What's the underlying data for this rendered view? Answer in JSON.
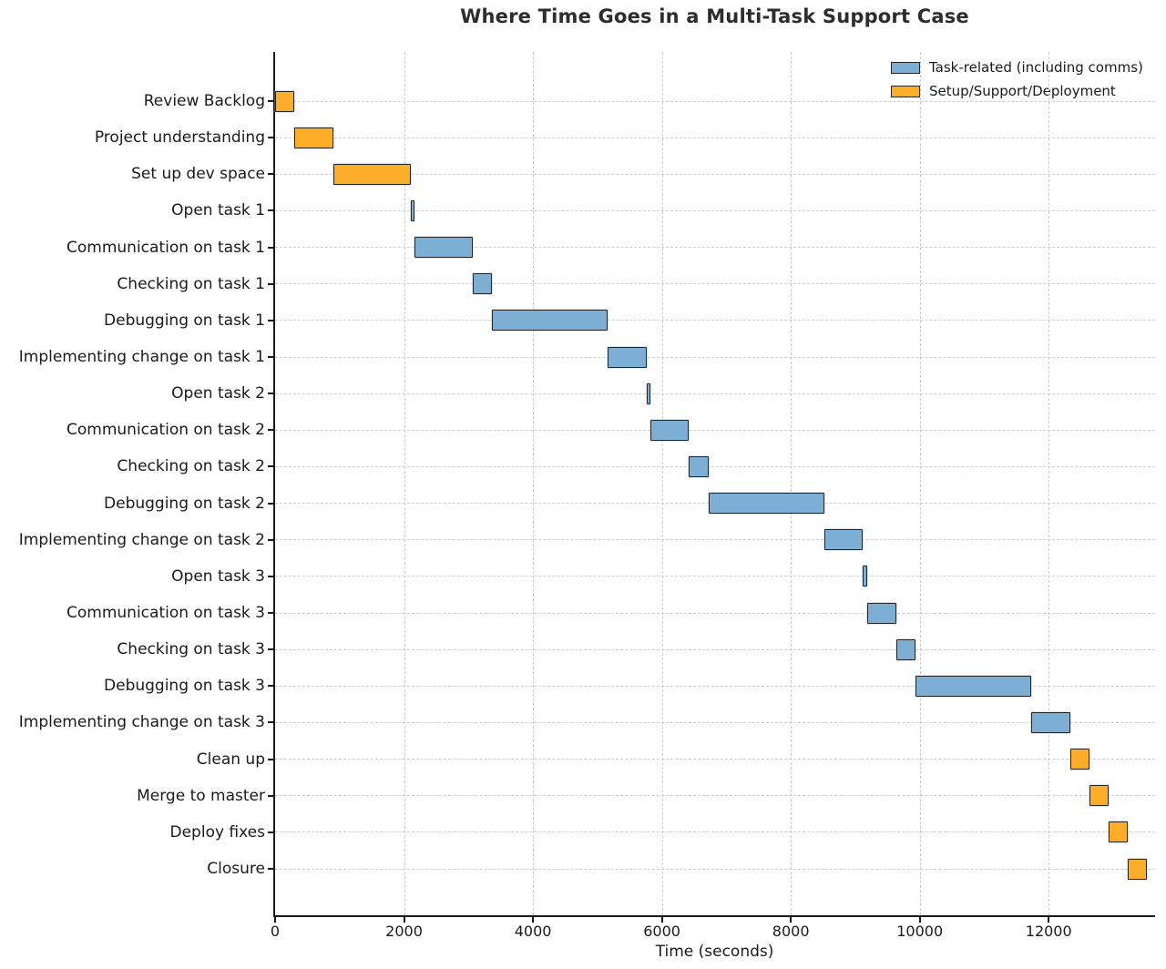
{
  "chart_data": {
    "type": "bar",
    "subtype": "gantt-horizontal",
    "title": "Where Time Goes in a Multi-Task Support Case",
    "xlabel": "Time (seconds)",
    "ylabel": "",
    "xlim": [
      0,
      13650
    ],
    "xticks": [
      0,
      2000,
      4000,
      6000,
      8000,
      10000,
      12000
    ],
    "grid": true,
    "grid_style": "dashed",
    "legend": {
      "position": "upper-right",
      "items": [
        {
          "label": "Task-related (including comms)",
          "category": "task",
          "color": "#7CAFD3"
        },
        {
          "label": "Setup/Support/Deployment",
          "category": "setup",
          "color": "#FCAE2B"
        }
      ]
    },
    "colors": {
      "task": "#7CAFD3",
      "setup": "#FCAE2B",
      "bar_edge": "#262626",
      "grid": "#cdcdcd",
      "text": "#1a1a1a"
    },
    "tasks": [
      {
        "label": "Review Backlog",
        "start": 0,
        "end": 300,
        "duration": 300,
        "category": "setup"
      },
      {
        "label": "Project understanding",
        "start": 300,
        "end": 900,
        "duration": 600,
        "category": "setup"
      },
      {
        "label": "Set up dev space",
        "start": 900,
        "end": 2100,
        "duration": 1200,
        "category": "setup"
      },
      {
        "label": "Open task 1",
        "start": 2100,
        "end": 2160,
        "duration": 60,
        "category": "task"
      },
      {
        "label": "Communication on task 1",
        "start": 2160,
        "end": 3060,
        "duration": 900,
        "category": "task"
      },
      {
        "label": "Checking on task 1",
        "start": 3060,
        "end": 3360,
        "duration": 300,
        "category": "task"
      },
      {
        "label": "Debugging on task 1",
        "start": 3360,
        "end": 5160,
        "duration": 1800,
        "category": "task"
      },
      {
        "label": "Implementing change on task 1",
        "start": 5160,
        "end": 5760,
        "duration": 600,
        "category": "task"
      },
      {
        "label": "Open task 2",
        "start": 5760,
        "end": 5820,
        "duration": 60,
        "category": "task"
      },
      {
        "label": "Communication on task 2",
        "start": 5820,
        "end": 6420,
        "duration": 600,
        "category": "task"
      },
      {
        "label": "Checking on task 2",
        "start": 6420,
        "end": 6720,
        "duration": 300,
        "category": "task"
      },
      {
        "label": "Debugging on task 2",
        "start": 6720,
        "end": 8520,
        "duration": 1800,
        "category": "task"
      },
      {
        "label": "Implementing change on task 2",
        "start": 8520,
        "end": 9120,
        "duration": 600,
        "category": "task"
      },
      {
        "label": "Open task 3",
        "start": 9120,
        "end": 9180,
        "duration": 60,
        "category": "task"
      },
      {
        "label": "Communication on task 3",
        "start": 9180,
        "end": 9630,
        "duration": 450,
        "category": "task"
      },
      {
        "label": "Checking on task 3",
        "start": 9630,
        "end": 9930,
        "duration": 300,
        "category": "task"
      },
      {
        "label": "Debugging on task 3",
        "start": 9930,
        "end": 11730,
        "duration": 1800,
        "category": "task"
      },
      {
        "label": "Implementing change on task 3",
        "start": 11730,
        "end": 12330,
        "duration": 600,
        "category": "task"
      },
      {
        "label": "Clean up",
        "start": 12330,
        "end": 12630,
        "duration": 300,
        "category": "setup"
      },
      {
        "label": "Merge to master",
        "start": 12630,
        "end": 12930,
        "duration": 300,
        "category": "setup"
      },
      {
        "label": "Deploy fixes",
        "start": 12930,
        "end": 13230,
        "duration": 300,
        "category": "setup"
      },
      {
        "label": "Closure",
        "start": 13230,
        "end": 13530,
        "duration": 300,
        "category": "setup"
      }
    ]
  }
}
